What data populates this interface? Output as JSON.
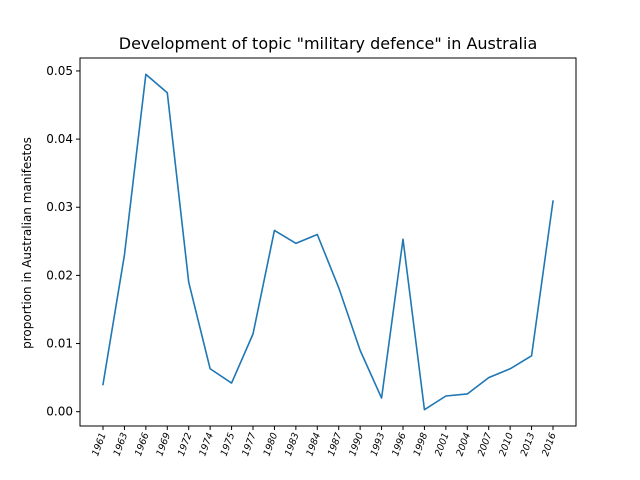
{
  "chart_data": {
    "type": "line",
    "title": "Development of topic \"military defence\" in Australia",
    "xlabel": "",
    "ylabel": "proportion in Australian manifestos",
    "categories": [
      "1961",
      "1963",
      "1966",
      "1969",
      "1972",
      "1974",
      "1975",
      "1977",
      "1980",
      "1983",
      "1984",
      "1987",
      "1990",
      "1993",
      "1996",
      "1998",
      "2001",
      "2004",
      "2007",
      "2010",
      "2013",
      "2016"
    ],
    "series": [
      {
        "color": "#1f77b4",
        "values": [
          0.004,
          0.023,
          0.0495,
          0.0468,
          0.019,
          0.0063,
          0.0042,
          0.0114,
          0.0266,
          0.0247,
          0.026,
          0.0182,
          0.009,
          0.002,
          0.0253,
          0.0003,
          0.0023,
          0.0026,
          0.005,
          0.0063,
          0.0082,
          0.0309
        ]
      }
    ],
    "ylim": [
      -0.0021,
      0.0519
    ],
    "yticks": [
      "0.00",
      "0.01",
      "0.02",
      "0.03",
      "0.04",
      "0.05"
    ],
    "grid": false
  }
}
